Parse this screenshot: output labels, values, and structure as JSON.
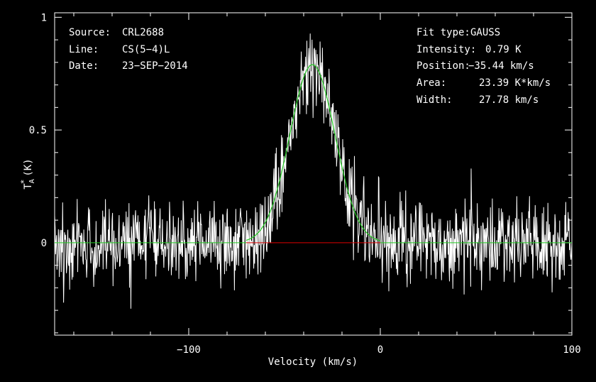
{
  "chart_data": {
    "type": "line",
    "xlabel": "Velocity (km/s)",
    "ylabel_main": "T",
    "ylabel_sub": "A",
    "ylabel_sup": "*",
    "ylabel_unit": "(K)",
    "xlim": [
      -170,
      100
    ],
    "ylim": [
      -0.41,
      1.02
    ],
    "xticks": [
      -100,
      0,
      100
    ],
    "xtick_labels": [
      "−100",
      "0",
      "100"
    ],
    "yticks": [
      0,
      0.5,
      1
    ],
    "ytick_labels": [
      "0",
      "0.5",
      "1"
    ],
    "grid": false,
    "header_left": [
      {
        "key": "Source:",
        "value": "CRL2688"
      },
      {
        "key": "Line:",
        "value": "CS(5−4)L"
      },
      {
        "key": "Date:",
        "value": "23−SEP−2014"
      }
    ],
    "header_right": [
      {
        "key": "Fit type:",
        "value": "GAUSS"
      },
      {
        "key": "Intensity:",
        "value": "0.79 K"
      },
      {
        "key": "Position:",
        "value": "−35.44 km/s"
      },
      {
        "key": "Area:",
        "value": "23.39 K*km/s"
      },
      {
        "key": "Width:",
        "value": "27.78 km/s"
      }
    ],
    "fit": {
      "amplitude": 0.79,
      "center": -35.44,
      "fwhm": 27.78
    },
    "baseline": {
      "y": 0,
      "x_range": [
        -70,
        0
      ]
    },
    "series": [
      {
        "kind": "spectrum",
        "noise_rms": 0.09,
        "n_channels": 1100,
        "seed": 2688
      },
      {
        "kind": "gaussian-fit"
      },
      {
        "kind": "baseline"
      }
    ],
    "colors": {
      "background": "#000000",
      "spectrum": "#ffffff",
      "fit": "#22cc22",
      "baseline": "#dd0000",
      "axes": "#ffffff"
    }
  }
}
